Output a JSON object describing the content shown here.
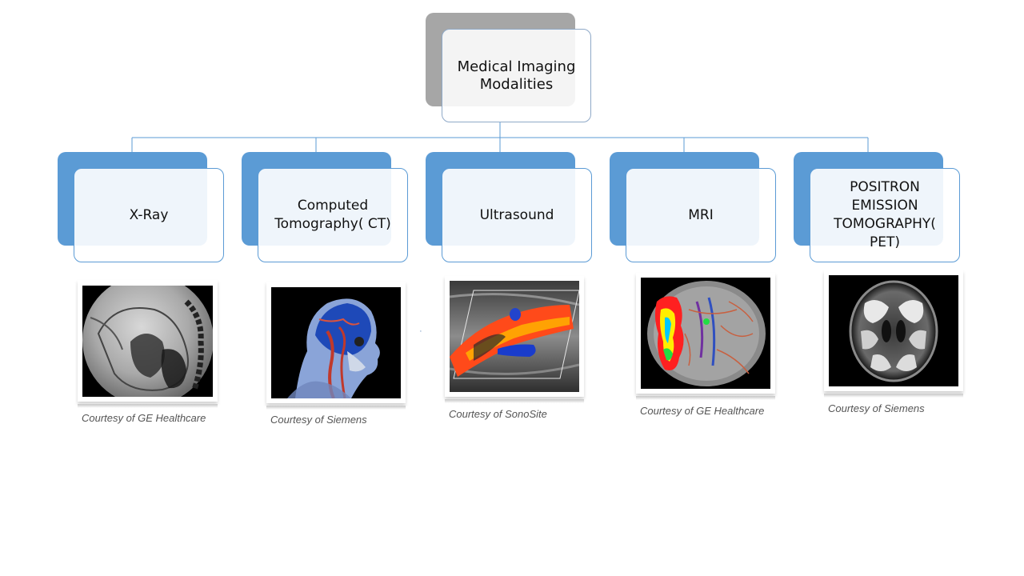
{
  "diagram": {
    "root": {
      "label": "Medical Imaging Modalities"
    },
    "modalities": [
      {
        "label": "X-Ray",
        "image": "xray-fluoroscopy-image",
        "caption": "Courtesy of GE Healthcare"
      },
      {
        "label": "Computed Tomography( CT)",
        "image": "ct-head-render-image",
        "caption": "Courtesy of Siemens"
      },
      {
        "label": "Ultrasound",
        "image": "ultrasound-doppler-image",
        "caption": "Courtesy of SonoSite"
      },
      {
        "label": "MRI",
        "image": "mri-brain-perfusion-image",
        "caption": "Courtesy of GE Healthcare"
      },
      {
        "label": "POSITRON EMISSION TOMOGRAPHY( PET)",
        "image": "pet-brain-scan-image",
        "caption": "Courtesy of Siemens"
      }
    ],
    "colors": {
      "node_accent": "#5b9bd5",
      "root_shadow": "#a6a6a6",
      "connector": "#5b9bd5",
      "caption_text": "#555555"
    }
  }
}
